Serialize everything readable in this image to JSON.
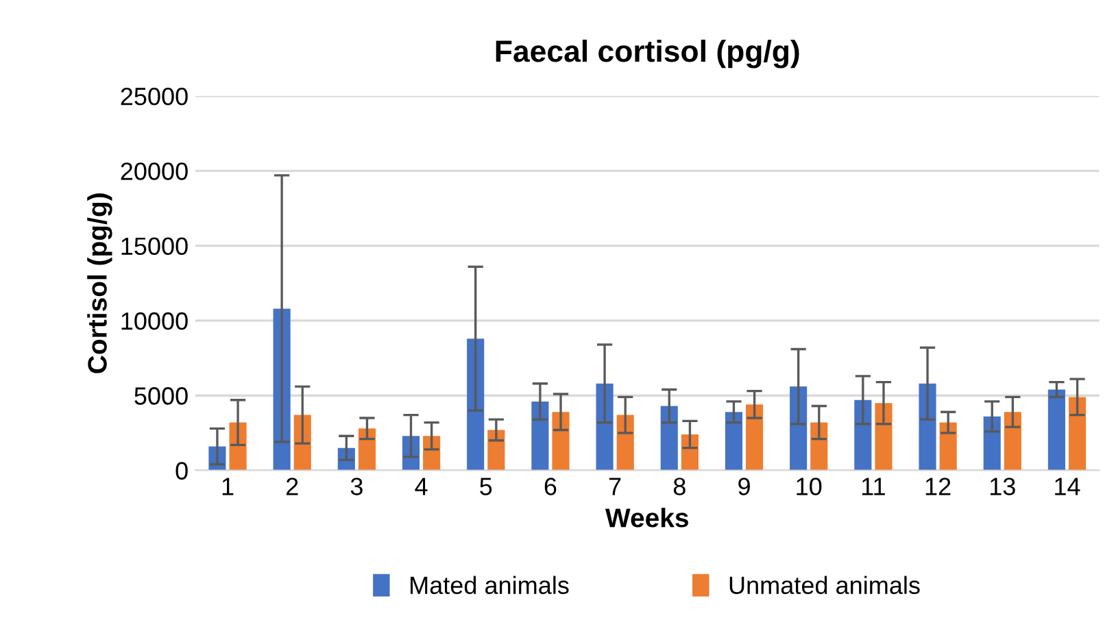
{
  "chart_data": {
    "type": "bar",
    "title": "Faecal cortisol (pg/g)",
    "xlabel": "Weeks",
    "ylabel": "Cortisol (pg/g)",
    "categories": [
      "1",
      "2",
      "3",
      "4",
      "5",
      "6",
      "7",
      "8",
      "9",
      "10",
      "11",
      "12",
      "13",
      "14"
    ],
    "series": [
      {
        "name": "Mated animals",
        "color": "#4472c4",
        "values": [
          1600,
          10800,
          1500,
          2300,
          8800,
          4600,
          5800,
          4300,
          3900,
          5600,
          4700,
          5800,
          3600,
          5400
        ],
        "errors": [
          1200,
          8900,
          800,
          1400,
          4800,
          1200,
          2600,
          1100,
          700,
          2500,
          1600,
          2400,
          1000,
          500
        ]
      },
      {
        "name": "Unmated animals",
        "color": "#ed7d31",
        "values": [
          3200,
          3700,
          2800,
          2300,
          2700,
          3900,
          3700,
          2400,
          4400,
          3200,
          4500,
          3200,
          3900,
          4900
        ],
        "errors": [
          1500,
          1900,
          700,
          900,
          700,
          1200,
          1200,
          900,
          900,
          1100,
          1400,
          700,
          1000,
          1200
        ]
      }
    ],
    "ylim": [
      0,
      25000
    ],
    "yticks": [
      0,
      5000,
      10000,
      15000,
      20000,
      25000
    ],
    "grid": "y",
    "legend": "bottom"
  }
}
